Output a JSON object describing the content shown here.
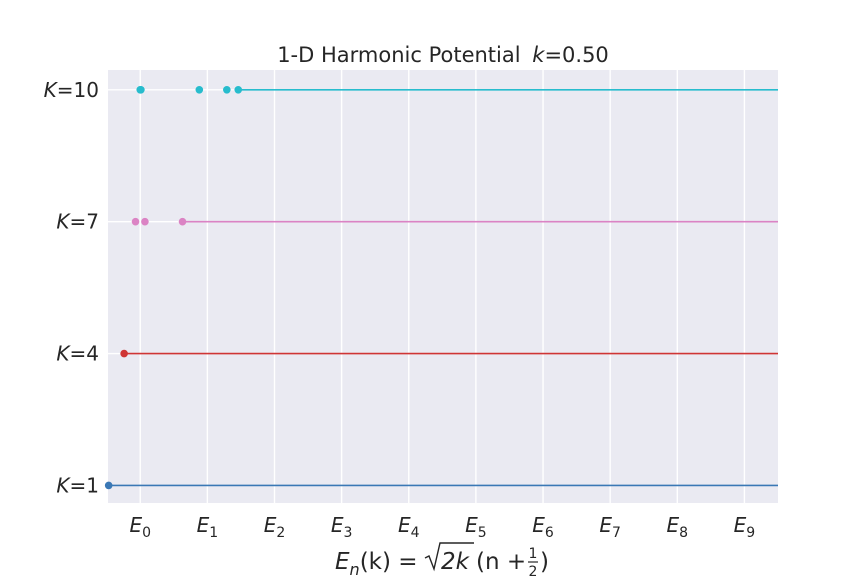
{
  "chart_data": {
    "type": "scatter",
    "title": "1-D Harmonic Potential",
    "title_param": {
      "symbol": "k",
      "value": "=0.50"
    },
    "xlabel": {
      "lhs": "E",
      "sub": "n",
      "arg": "(k) = ",
      "root": "2k",
      "rest_open": "(n + ",
      "frac_num": "1",
      "frac_den": "2",
      "rest_close": ")"
    },
    "x_ticks": [
      {
        "value": 0,
        "label": "E",
        "sub": "0"
      },
      {
        "value": 1,
        "label": "E",
        "sub": "1"
      },
      {
        "value": 2,
        "label": "E",
        "sub": "2"
      },
      {
        "value": 3,
        "label": "E",
        "sub": "3"
      },
      {
        "value": 4,
        "label": "E",
        "sub": "4"
      },
      {
        "value": 5,
        "label": "E",
        "sub": "5"
      },
      {
        "value": 6,
        "label": "E",
        "sub": "6"
      },
      {
        "value": 7,
        "label": "E",
        "sub": "7"
      },
      {
        "value": 8,
        "label": "E",
        "sub": "8"
      },
      {
        "value": 9,
        "label": "E",
        "sub": "9"
      }
    ],
    "y_ticks": [
      {
        "value": 1,
        "label": "K",
        "rest": "=1"
      },
      {
        "value": 4,
        "label": "K",
        "rest": "=4"
      },
      {
        "value": 7,
        "label": "K",
        "rest": "=7"
      },
      {
        "value": 10,
        "label": "K",
        "rest": "=10"
      }
    ],
    "xlim": [
      -0.48,
      9.5
    ],
    "ylim": [
      0.6,
      10.45
    ],
    "grid": true,
    "background": "#eaeaf2",
    "series": [
      {
        "K": 1,
        "color": "#3a78b5",
        "points": [
          -0.47
        ]
      },
      {
        "K": 4,
        "color": "#cf3535",
        "points": [
          -0.24
        ]
      },
      {
        "K": 7,
        "color": "#db83c4",
        "points": [
          -0.07,
          0.07,
          0.63
        ]
      },
      {
        "K": 10,
        "color": "#27bccd",
        "points": [
          0.0,
          0.01,
          0.88,
          1.29,
          1.46
        ]
      }
    ]
  }
}
